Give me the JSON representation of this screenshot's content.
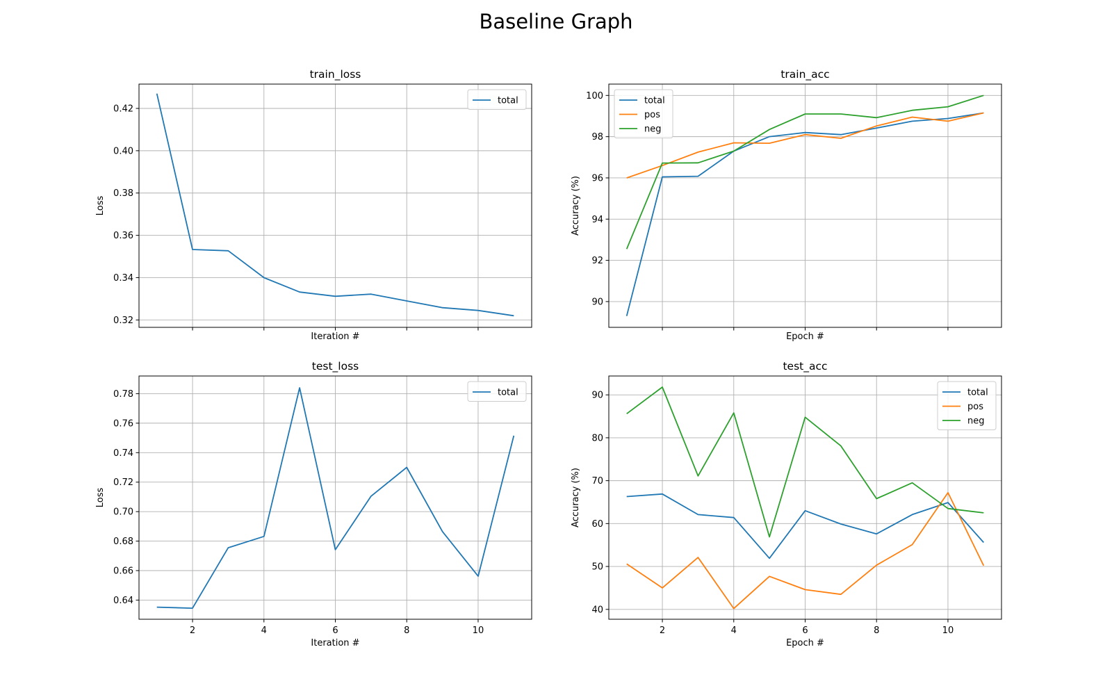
{
  "figure": {
    "title": "Baseline Graph"
  },
  "colors": {
    "total": "#1f77b4",
    "pos": "#ff7f0e",
    "neg": "#2ca02c",
    "grid": "#b0b0b0"
  },
  "chart_data": [
    {
      "id": "train_loss",
      "type": "line",
      "title": "train_loss",
      "xlabel": "Iteration #",
      "ylabel": "Loss",
      "xlim": [
        0.5,
        11.5
      ],
      "ylim": [
        0.3165,
        0.4315
      ],
      "xticks": [
        2,
        4,
        6,
        8,
        10
      ],
      "yticks": [
        0.32,
        0.34,
        0.36,
        0.38,
        0.4,
        0.42
      ],
      "ytick_labels": [
        "0.32",
        "0.34",
        "0.36",
        "0.38",
        "0.40",
        "0.42"
      ],
      "show_xtick_labels": false,
      "grid": true,
      "legend": "upper right",
      "x": [
        1,
        2,
        3,
        4,
        5,
        6,
        7,
        8,
        9,
        10,
        11
      ],
      "series": [
        {
          "name": "total",
          "color": "#1f77b4",
          "values": [
            0.427,
            0.3533,
            0.3527,
            0.34,
            0.3332,
            0.3312,
            0.3322,
            0.329,
            0.3258,
            0.3245,
            0.322
          ]
        }
      ]
    },
    {
      "id": "train_acc",
      "type": "line",
      "title": "train_acc",
      "xlabel": "Epoch #",
      "ylabel": "Accuracy (%)",
      "xlim": [
        0.5,
        11.5
      ],
      "ylim": [
        88.75,
        100.55
      ],
      "xticks": [
        2,
        4,
        6,
        8,
        10
      ],
      "yticks": [
        90,
        92,
        94,
        96,
        98,
        100
      ],
      "ytick_labels": [
        "90",
        "92",
        "94",
        "96",
        "98",
        "100"
      ],
      "show_xtick_labels": false,
      "grid": true,
      "legend": "upper left",
      "x": [
        1,
        2,
        3,
        4,
        5,
        6,
        7,
        8,
        9,
        10,
        11
      ],
      "series": [
        {
          "name": "total",
          "color": "#1f77b4",
          "values": [
            89.3,
            96.05,
            96.08,
            97.3,
            98.0,
            98.2,
            98.1,
            98.42,
            98.75,
            98.88,
            99.15
          ]
        },
        {
          "name": "pos",
          "color": "#ff7f0e",
          "values": [
            96.0,
            96.6,
            97.25,
            97.7,
            97.68,
            98.1,
            97.92,
            98.52,
            98.95,
            98.75,
            99.15
          ]
        },
        {
          "name": "neg",
          "color": "#2ca02c",
          "values": [
            92.55,
            96.72,
            96.73,
            97.3,
            98.35,
            99.1,
            99.1,
            98.92,
            99.28,
            99.45,
            100.0
          ]
        }
      ]
    },
    {
      "id": "test_loss",
      "type": "line",
      "title": "test_loss",
      "xlabel": "Iteration #",
      "ylabel": "Loss",
      "xlim": [
        0.5,
        11.5
      ],
      "ylim": [
        0.627,
        0.792
      ],
      "xticks": [
        2,
        4,
        6,
        8,
        10
      ],
      "yticks": [
        0.64,
        0.66,
        0.68,
        0.7,
        0.72,
        0.74,
        0.76,
        0.78
      ],
      "ytick_labels": [
        "0.64",
        "0.66",
        "0.68",
        "0.70",
        "0.72",
        "0.74",
        "0.76",
        "0.78"
      ],
      "show_xtick_labels": true,
      "grid": true,
      "legend": "upper right",
      "x": [
        1,
        2,
        3,
        4,
        5,
        6,
        7,
        8,
        9,
        10,
        11
      ],
      "series": [
        {
          "name": "total",
          "color": "#1f77b4",
          "values": [
            0.6352,
            0.6345,
            0.6755,
            0.6832,
            0.784,
            0.6742,
            0.7105,
            0.73,
            0.6865,
            0.6562,
            0.7515
          ]
        }
      ]
    },
    {
      "id": "test_acc",
      "type": "line",
      "title": "test_acc",
      "xlabel": "Epoch #",
      "ylabel": "Accuracy (%)",
      "xlim": [
        0.5,
        11.5
      ],
      "ylim": [
        37.7,
        94.4
      ],
      "xticks": [
        2,
        4,
        6,
        8,
        10
      ],
      "yticks": [
        40,
        50,
        60,
        70,
        80,
        90
      ],
      "ytick_labels": [
        "40",
        "50",
        "60",
        "70",
        "80",
        "90"
      ],
      "show_xtick_labels": true,
      "grid": true,
      "legend": "upper right",
      "x": [
        1,
        2,
        3,
        4,
        5,
        6,
        7,
        8,
        9,
        10,
        11
      ],
      "series": [
        {
          "name": "total",
          "color": "#1f77b4",
          "values": [
            66.3,
            66.9,
            62.1,
            61.4,
            51.9,
            63.0,
            59.9,
            57.6,
            62.1,
            64.9,
            55.6
          ]
        },
        {
          "name": "pos",
          "color": "#ff7f0e",
          "values": [
            50.6,
            45.0,
            52.1,
            40.2,
            47.7,
            44.6,
            43.5,
            50.3,
            55.1,
            67.2,
            50.2
          ]
        },
        {
          "name": "neg",
          "color": "#2ca02c",
          "values": [
            85.6,
            91.8,
            71.1,
            85.8,
            56.9,
            84.8,
            78.1,
            65.8,
            69.5,
            63.5,
            62.5
          ]
        }
      ]
    }
  ]
}
